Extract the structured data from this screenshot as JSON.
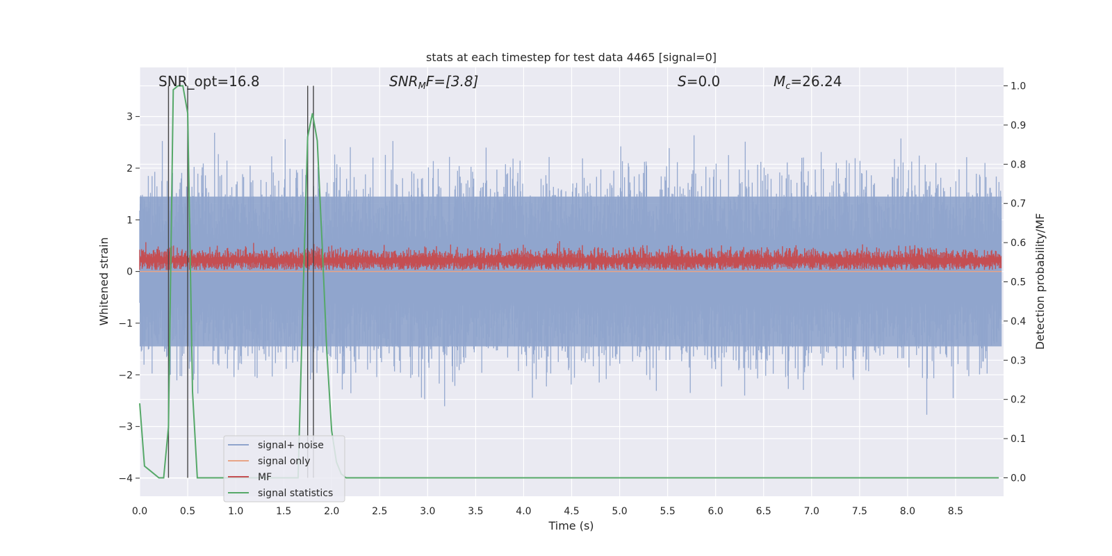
{
  "chart_data": {
    "type": "line",
    "title": "stats at each timestep for test data 4465 [signal=0]",
    "xlabel": "Time (s)",
    "ylabel": "Whitened strain",
    "y2label": "Detection probability/MF",
    "xlim": [
      0,
      9
    ],
    "ylim": [
      -4.35,
      3.95
    ],
    "y2lim": [
      -0.047,
      1.047
    ],
    "xticks": [
      "0.0",
      "0.5",
      "1.0",
      "1.5",
      "2.0",
      "2.5",
      "3.0",
      "3.5",
      "4.0",
      "4.5",
      "5.0",
      "5.5",
      "6.0",
      "6.5",
      "7.0",
      "7.5",
      "8.0",
      "8.5"
    ],
    "yticks": [
      "−4",
      "−3",
      "−2",
      "−1",
      "0",
      "1",
      "2",
      "3"
    ],
    "y2ticks": [
      "0.0",
      "0.1",
      "0.2",
      "0.3",
      "0.4",
      "0.5",
      "0.6",
      "0.7",
      "0.8",
      "0.9",
      "1.0"
    ],
    "grid": true,
    "legend_position": "lower-left",
    "annotations": {
      "snr_opt": "SNR_opt=16.8",
      "snr_mf_label": "SNR",
      "snr_mf_sub": "M",
      "snr_mf_tail": "F=[3.8]",
      "s_label": "S",
      "s_value": "=0.0",
      "mc_label": "M",
      "mc_sub": "c",
      "mc_value": "=26.24"
    },
    "vertical_lines_x": [
      0.3,
      0.5,
      1.75,
      1.81
    ],
    "series": [
      {
        "name": "signal+ noise",
        "color": "#8fa4cc",
        "axis": "left",
        "amplitude_envelope": [
          -3.6,
          3.6
        ]
      },
      {
        "name": "signal only",
        "color": "#e8a486",
        "axis": "left",
        "value": 0.0
      },
      {
        "name": "MF",
        "color": "#c44e52",
        "axis": "right",
        "range": [
          0.53,
          0.66
        ]
      },
      {
        "name": "signal statistics",
        "color": "#55a868",
        "axis": "right",
        "x": [
          0.0,
          0.05,
          0.1,
          0.2,
          0.25,
          0.3,
          0.35,
          0.4,
          0.45,
          0.5,
          0.55,
          0.6,
          0.65,
          0.7,
          0.8,
          0.9,
          1.0,
          1.1,
          1.2,
          1.3,
          1.4,
          1.5,
          1.6,
          1.65,
          1.7,
          1.75,
          1.8,
          1.85,
          1.9,
          1.95,
          2.0,
          2.05,
          2.1,
          2.15,
          2.2,
          2.5,
          3.0,
          4.0,
          5.0,
          6.0,
          7.0,
          8.0,
          8.95
        ],
        "values": [
          0.19,
          0.03,
          0.02,
          0.0,
          0.0,
          0.13,
          0.99,
          1.0,
          1.0,
          0.93,
          0.22,
          0.0,
          0.0,
          0.0,
          0.0,
          0.0,
          0.0,
          0.0,
          0.0,
          0.0,
          0.0,
          0.0,
          0.0,
          0.0,
          0.45,
          0.87,
          0.93,
          0.86,
          0.6,
          0.32,
          0.12,
          0.04,
          0.01,
          0.0,
          0.0,
          0.0,
          0.0,
          0.0,
          0.0,
          0.0,
          0.0,
          0.0,
          0.0
        ]
      }
    ]
  }
}
